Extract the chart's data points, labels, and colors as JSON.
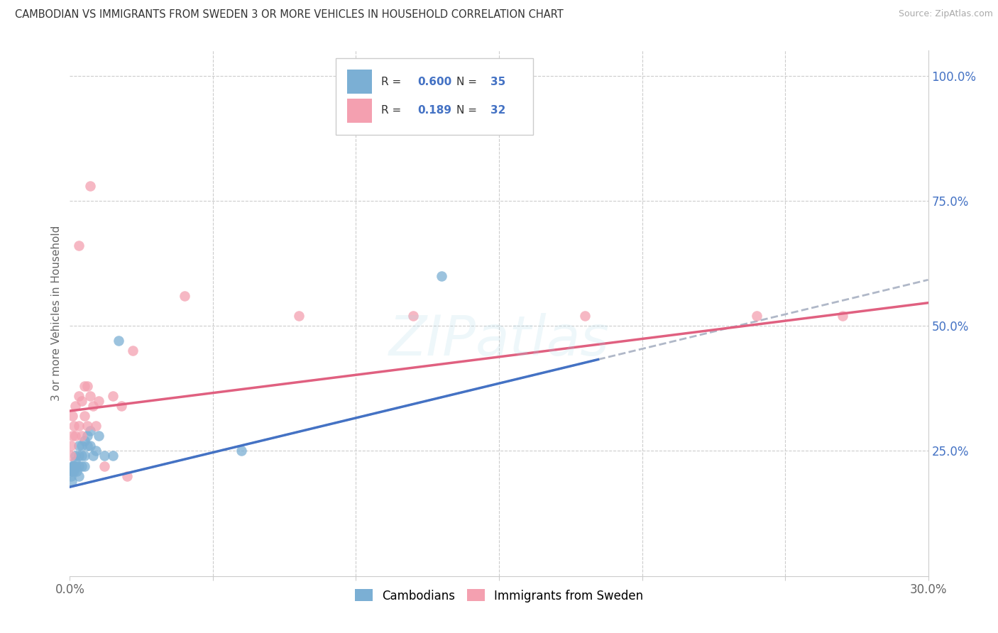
{
  "title": "CAMBODIAN VS IMMIGRANTS FROM SWEDEN 3 OR MORE VEHICLES IN HOUSEHOLD CORRELATION CHART",
  "source": "Source: ZipAtlas.com",
  "ylabel": "3 or more Vehicles in Household",
  "legend_label1": "Cambodians",
  "legend_label2": "Immigrants from Sweden",
  "R1": "0.600",
  "N1": "35",
  "R2": "0.189",
  "N2": "32",
  "watermark": "ZIPatlas",
  "blue_scatter_color": "#7bafd4",
  "pink_scatter_color": "#f4a0b0",
  "blue_line_color": "#4472c4",
  "pink_line_color": "#e06080",
  "dashed_line_color": "#b0b8c8",
  "grid_color": "#cccccc",
  "right_tick_color": "#4472c4",
  "title_color": "#333333",
  "source_color": "#aaaaaa",
  "xmin": 0.0,
  "xmax": 0.3,
  "ymin": 0.0,
  "ymax": 1.05,
  "ytick_vals": [
    0.25,
    0.5,
    0.75,
    1.0
  ],
  "xtick_positions": [
    0.0,
    0.05,
    0.1,
    0.15,
    0.2,
    0.25,
    0.3
  ],
  "cam_x": [
    0.0003,
    0.0005,
    0.0006,
    0.001,
    0.001,
    0.0012,
    0.0013,
    0.0015,
    0.0015,
    0.002,
    0.002,
    0.002,
    0.0025,
    0.003,
    0.003,
    0.003,
    0.003,
    0.004,
    0.004,
    0.004,
    0.005,
    0.005,
    0.005,
    0.006,
    0.006,
    0.007,
    0.007,
    0.008,
    0.009,
    0.01,
    0.012,
    0.015,
    0.017,
    0.06,
    0.13
  ],
  "cam_y": [
    0.21,
    0.2,
    0.19,
    0.22,
    0.21,
    0.22,
    0.22,
    0.21,
    0.22,
    0.22,
    0.23,
    0.24,
    0.21,
    0.2,
    0.22,
    0.24,
    0.26,
    0.22,
    0.24,
    0.26,
    0.22,
    0.24,
    0.27,
    0.26,
    0.28,
    0.26,
    0.29,
    0.24,
    0.25,
    0.28,
    0.24,
    0.24,
    0.47,
    0.25,
    0.6
  ],
  "swe_x": [
    0.0003,
    0.0005,
    0.001,
    0.001,
    0.0015,
    0.002,
    0.002,
    0.003,
    0.003,
    0.004,
    0.004,
    0.005,
    0.005,
    0.006,
    0.006,
    0.007,
    0.008,
    0.009,
    0.01,
    0.012,
    0.015,
    0.018,
    0.02,
    0.022,
    0.04,
    0.08,
    0.12,
    0.18,
    0.24,
    0.27,
    0.003,
    0.007
  ],
  "swe_y": [
    0.24,
    0.26,
    0.28,
    0.32,
    0.3,
    0.28,
    0.34,
    0.3,
    0.36,
    0.28,
    0.35,
    0.32,
    0.38,
    0.3,
    0.38,
    0.36,
    0.34,
    0.3,
    0.35,
    0.22,
    0.36,
    0.34,
    0.2,
    0.45,
    0.56,
    0.52,
    0.52,
    0.52,
    0.52,
    0.52,
    0.66,
    0.78
  ],
  "blue_line_intercept": 0.178,
  "blue_line_slope": 1.38,
  "pink_line_intercept": 0.33,
  "pink_line_slope": 0.72
}
